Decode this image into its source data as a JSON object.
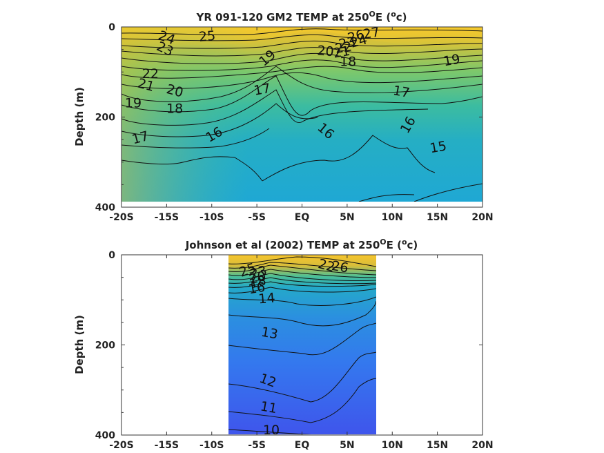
{
  "chart_data": [
    {
      "type": "heatmap",
      "title": "YR 091-120 GM2 TEMP at 250",
      "title_sup": "O",
      "title_tail": "E (",
      "title_unit_sup": "o",
      "title_end": "c)",
      "ylabel": "Depth (m)",
      "xlim": [
        -20,
        20
      ],
      "ylim": [
        400,
        0
      ],
      "xticks": [
        "-20S",
        "-15S",
        "-10S",
        "-5S",
        "EQ",
        "5N",
        "10N",
        "15N",
        "20N"
      ],
      "yticks": [
        "0",
        "200",
        "400"
      ],
      "data_xrange": [
        -20,
        20
      ],
      "data_yrange": [
        0,
        390
      ],
      "contour_labels": [
        {
          "text": "27",
          "x": 7.7,
          "y": 15,
          "rot": -10
        },
        {
          "text": "26",
          "x": 6.0,
          "y": 22,
          "rot": -15
        },
        {
          "text": "25",
          "x": -10.5,
          "y": 22,
          "rot": -5
        },
        {
          "text": "24",
          "x": -15.0,
          "y": 25,
          "rot": 20
        },
        {
          "text": "24",
          "x": 6.3,
          "y": 33,
          "rot": -15
        },
        {
          "text": "23",
          "x": -15.2,
          "y": 50,
          "rot": 25
        },
        {
          "text": "23",
          "x": 5.0,
          "y": 37,
          "rot": -10
        },
        {
          "text": "22",
          "x": 4.6,
          "y": 47,
          "rot": -10
        },
        {
          "text": "21",
          "x": 4.4,
          "y": 57,
          "rot": -10
        },
        {
          "text": "20",
          "x": 2.6,
          "y": 55,
          "rot": 5
        },
        {
          "text": "19",
          "x": -3.8,
          "y": 70,
          "rot": -40
        },
        {
          "text": "18",
          "x": 5.1,
          "y": 78,
          "rot": 0
        },
        {
          "text": "19",
          "x": 16.6,
          "y": 75,
          "rot": -10
        },
        {
          "text": "22",
          "x": -16.8,
          "y": 105,
          "rot": 0
        },
        {
          "text": "21",
          "x": -17.3,
          "y": 130,
          "rot": 15
        },
        {
          "text": "20",
          "x": -14.1,
          "y": 143,
          "rot": 15
        },
        {
          "text": "17",
          "x": -4.4,
          "y": 140,
          "rot": -10
        },
        {
          "text": "17",
          "x": 11.0,
          "y": 145,
          "rot": 10
        },
        {
          "text": "19",
          "x": -18.7,
          "y": 170,
          "rot": 0
        },
        {
          "text": "18",
          "x": -14.1,
          "y": 182,
          "rot": 0
        },
        {
          "text": "16",
          "x": 2.6,
          "y": 232,
          "rot": 40
        },
        {
          "text": "16",
          "x": -9.7,
          "y": 240,
          "rot": -30
        },
        {
          "text": "16",
          "x": 11.8,
          "y": 218,
          "rot": -60
        },
        {
          "text": "17",
          "x": -17.9,
          "y": 247,
          "rot": -15
        },
        {
          "text": "15",
          "x": 15.1,
          "y": 268,
          "rot": -10
        }
      ]
    },
    {
      "type": "heatmap",
      "title": "Johnson et al (2002) TEMP at 250",
      "title_sup": "O",
      "title_tail": "E (",
      "title_unit_sup": "o",
      "title_end": "c)",
      "ylabel": "Depth (m)",
      "xlim": [
        -20,
        20
      ],
      "ylim": [
        400,
        0
      ],
      "xticks": [
        "-20S",
        "-15S",
        "-10S",
        "-5S",
        "EQ",
        "5N",
        "10N",
        "15N",
        "20N"
      ],
      "yticks": [
        "0",
        "200",
        "400"
      ],
      "data_xrange": [
        -8,
        8.2
      ],
      "data_yrange": [
        0,
        400
      ],
      "contour_labels": [
        {
          "text": "25",
          "x": -6.0,
          "y": 35,
          "rot": -20
        },
        {
          "text": "22",
          "x": 2.7,
          "y": 25,
          "rot": 15
        },
        {
          "text": "26",
          "x": 4.2,
          "y": 28,
          "rot": 10
        },
        {
          "text": "23",
          "x": -4.8,
          "y": 40,
          "rot": -15
        },
        {
          "text": "20",
          "x": -4.9,
          "y": 52,
          "rot": -15
        },
        {
          "text": "18",
          "x": -4.9,
          "y": 62,
          "rot": -15
        },
        {
          "text": "16",
          "x": -5.0,
          "y": 75,
          "rot": -10
        },
        {
          "text": "14",
          "x": -3.9,
          "y": 98,
          "rot": -5
        },
        {
          "text": "13",
          "x": -3.6,
          "y": 175,
          "rot": 10
        },
        {
          "text": "12",
          "x": -3.8,
          "y": 280,
          "rot": 20
        },
        {
          "text": "11",
          "x": -3.7,
          "y": 340,
          "rot": 10
        },
        {
          "text": "10",
          "x": -3.4,
          "y": 390,
          "rot": 0
        }
      ]
    }
  ]
}
